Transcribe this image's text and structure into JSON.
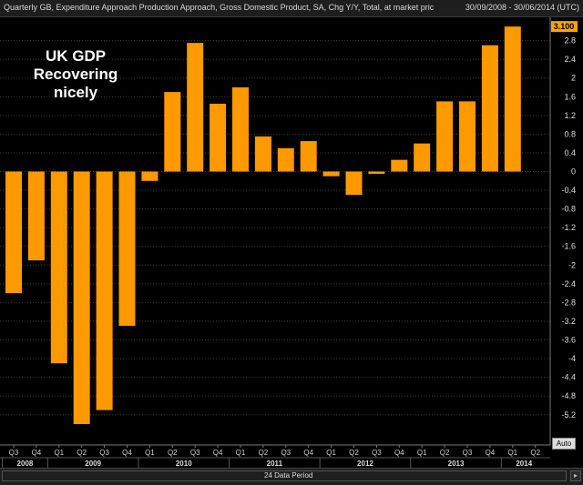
{
  "header": {
    "title": "Quarterly GB, Expenditure Approach Production Approach, Gross Domestic Product, SA, Chg Y/Y, Total, at market pric",
    "date_range": "30/09/2008 - 30/06/2014 (UTC)"
  },
  "annotation": {
    "line1": "UK GDP",
    "line2": "Recovering",
    "line3": "nicely"
  },
  "footer": {
    "period_label": "24 Data Period",
    "auto_label": "Auto"
  },
  "colors": {
    "bar": "#ff9900",
    "background": "#000000",
    "grid": "#3c3c3c",
    "last_value_box": "#ffa500"
  },
  "chart_data": {
    "type": "bar",
    "title": "Quarterly GB, Expenditure Approach Production Approach, Gross Domestic Product, SA, Chg Y/Y, Total, at market pric",
    "categories": [
      "Q3",
      "Q4",
      "Q1",
      "Q2",
      "Q3",
      "Q4",
      "Q1",
      "Q2",
      "Q3",
      "Q4",
      "Q1",
      "Q2",
      "Q3",
      "Q4",
      "Q1",
      "Q2",
      "Q3",
      "Q4",
      "Q1",
      "Q2",
      "Q3",
      "Q4",
      "Q1",
      "Q2"
    ],
    "years": [
      {
        "label": "2008",
        "start": 0,
        "count": 2
      },
      {
        "label": "2009",
        "start": 2,
        "count": 4
      },
      {
        "label": "2010",
        "start": 6,
        "count": 4
      },
      {
        "label": "2011",
        "start": 10,
        "count": 4
      },
      {
        "label": "2012",
        "start": 14,
        "count": 4
      },
      {
        "label": "2013",
        "start": 18,
        "count": 4
      },
      {
        "label": "2014",
        "start": 22,
        "count": 2
      }
    ],
    "values": [
      -2.6,
      -1.9,
      -4.1,
      -5.4,
      -5.1,
      -3.3,
      -0.2,
      1.7,
      2.75,
      1.45,
      1.8,
      0.75,
      0.5,
      0.65,
      -0.1,
      -0.5,
      -0.05,
      0.25,
      0.6,
      1.5,
      1.5,
      2.7,
      3.1,
      null
    ],
    "last_value_label": "3.100",
    "y_ticks": [
      "2.8",
      "2.4",
      "2",
      "1.6",
      "1.2",
      "0.8",
      "0.4",
      "0",
      "-0.4",
      "-0.8",
      "-1.2",
      "-1.6",
      "-2",
      "-2.4",
      "-2.8",
      "-3.2",
      "-3.6",
      "-4",
      "-4.4",
      "-4.8",
      "-5.2"
    ],
    "ylim": [
      -5.5,
      3.15
    ],
    "grid": true,
    "xlabel": "",
    "ylabel": ""
  }
}
